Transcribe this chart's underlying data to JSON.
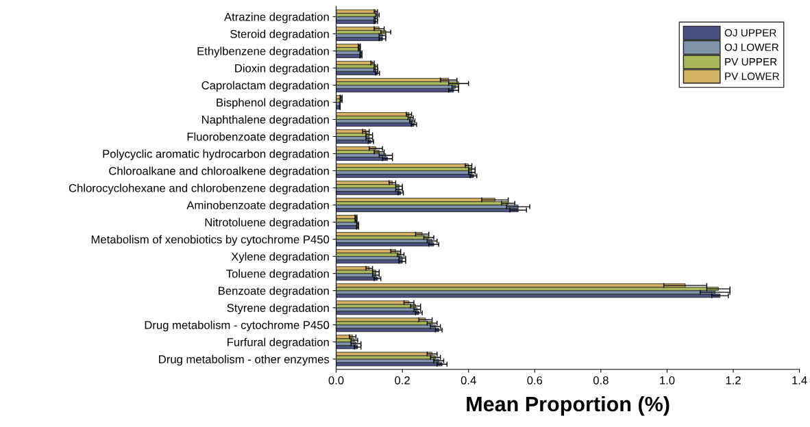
{
  "chart_data": {
    "type": "bar",
    "orientation": "horizontal",
    "xlabel": "Mean Proportion (%)",
    "xlim": [
      0,
      1.4
    ],
    "xticks": [
      {
        "value": 0,
        "label": "0.0"
      },
      0.2,
      0.4,
      0.6,
      0.8,
      {
        "value": 1,
        "label": "1.0"
      },
      1.2,
      1.4
    ],
    "legend": "top right",
    "grid": false,
    "categories": [
      "Atrazine degradation",
      "Steroid degradation",
      "Ethylbenzene degradation",
      "Dioxin degradation",
      "Caprolactam degradation",
      "Bisphenol degradation",
      "Naphthalene degradation",
      "Fluorobenzoate degradation",
      "Polycyclic aromatic hydrocarbon degradation",
      "Chloroalkane and chloroalkene degradation",
      "Chlorocyclohexane and chlorobenzene degradation",
      "Aminobenzoate degradation",
      "Nitrotoluene degradation",
      "Metabolism of xenobiotics by cytochrome P450",
      "Xylene degradation",
      "Toluene degradation",
      "Benzoate degradation",
      "Styrene degradation",
      "Drug metabolism - cytochrome P450",
      "Furfural degradation",
      "Drug metabolism - other enzymes"
    ],
    "series": [
      {
        "name": "OJ UPPER",
        "color": "#4b5282",
        "values": [
          0.12,
          0.14,
          0.075,
          0.125,
          0.355,
          0.012,
          0.235,
          0.105,
          0.155,
          0.415,
          0.195,
          0.55,
          0.065,
          0.295,
          0.2,
          0.125,
          1.16,
          0.25,
          0.31,
          0.065,
          0.32
        ],
        "errors": [
          0.005,
          0.01,
          0.003,
          0.006,
          0.015,
          null,
          0.008,
          0.008,
          0.015,
          0.01,
          0.008,
          0.025,
          0.003,
          0.015,
          0.01,
          0.01,
          0.025,
          0.01,
          0.01,
          0.01,
          0.015
        ]
      },
      {
        "name": "OJ LOWER",
        "color": "#8193ab",
        "values": [
          0.12,
          0.14,
          0.075,
          0.12,
          0.36,
          0.012,
          0.23,
          0.1,
          0.15,
          0.41,
          0.19,
          0.55,
          0.065,
          0.29,
          0.2,
          0.12,
          1.145,
          0.245,
          0.3,
          0.06,
          0.31
        ],
        "errors": [
          0.005,
          0.01,
          0.003,
          0.006,
          0.01,
          null,
          0.008,
          0.01,
          0.02,
          0.01,
          0.01,
          0.035,
          0.003,
          0.015,
          0.01,
          0.01,
          0.045,
          0.01,
          0.015,
          0.015,
          0.015
        ]
      },
      {
        "name": "PV UPPER",
        "color": "#a9b65a",
        "values": [
          0.125,
          0.15,
          0.07,
          0.12,
          0.37,
          0.015,
          0.225,
          0.1,
          0.13,
          0.41,
          0.19,
          0.52,
          0.06,
          0.28,
          0.195,
          0.12,
          1.155,
          0.24,
          0.29,
          0.055,
          0.3
        ],
        "errors": [
          0.005,
          0.015,
          0.003,
          0.005,
          0.03,
          0.003,
          0.008,
          0.01,
          0.015,
          0.01,
          0.01,
          0.02,
          0.003,
          0.015,
          0.01,
          0.01,
          0.035,
          0.015,
          0.015,
          0.01,
          0.015
        ]
      },
      {
        "name": "PV LOWER",
        "color": "#d5b163",
        "values": [
          0.12,
          0.13,
          0.07,
          0.11,
          0.34,
          0.015,
          0.22,
          0.09,
          0.12,
          0.4,
          0.17,
          0.48,
          0.06,
          0.26,
          0.18,
          0.1,
          1.055,
          0.22,
          0.27,
          0.05,
          0.29
        ],
        "errors": [
          0.005,
          0.015,
          0.003,
          0.005,
          0.025,
          0.003,
          0.008,
          0.01,
          0.02,
          0.01,
          0.01,
          0.04,
          0.003,
          0.02,
          0.015,
          0.01,
          0.065,
          0.015,
          0.02,
          0.01,
          0.015
        ]
      }
    ]
  }
}
